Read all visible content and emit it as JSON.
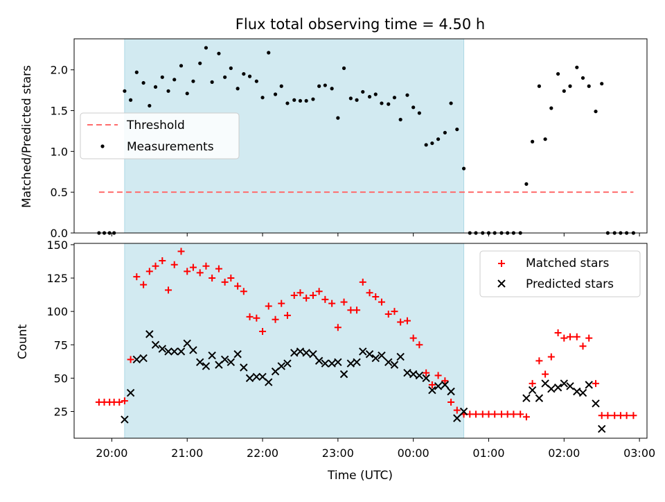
{
  "chart_data": [
    {
      "type": "scatter",
      "title": "Flux total observing time = 4.50 h",
      "xlabel": "",
      "ylabel": "Matched/Predicted stars",
      "x_unit": "hours (UTC, 24 = 00:00 next day)",
      "xlim": [
        19.5,
        27.1
      ],
      "ylim": [
        0,
        2.38
      ],
      "yticks": [
        "0.0",
        "0.5",
        "1.0",
        "1.5",
        "2.0"
      ],
      "legend": "center-left",
      "grid": false,
      "shaded_span": [
        20.17,
        24.67
      ],
      "shaded_color": "#add8e6",
      "series": [
        {
          "name": "Threshold",
          "style": "dashed-line",
          "color": "#ff6b6b",
          "x": [
            19.83,
            26.92
          ],
          "y": [
            0.5,
            0.5
          ]
        },
        {
          "name": "Measurements",
          "style": "dot",
          "color": "#000000",
          "x": [
            19.83,
            19.9,
            19.97,
            20.03,
            20.17,
            20.25,
            20.33,
            20.42,
            20.5,
            20.58,
            20.67,
            20.75,
            20.83,
            20.92,
            21.0,
            21.08,
            21.17,
            21.25,
            21.33,
            21.42,
            21.5,
            21.58,
            21.67,
            21.75,
            21.83,
            21.92,
            22.0,
            22.08,
            22.17,
            22.25,
            22.33,
            22.42,
            22.5,
            22.58,
            22.67,
            22.75,
            22.83,
            22.92,
            23.0,
            23.08,
            23.17,
            23.25,
            23.33,
            23.42,
            23.5,
            23.58,
            23.67,
            23.75,
            23.83,
            23.92,
            24.0,
            24.08,
            24.17,
            24.25,
            24.33,
            24.42,
            24.5,
            24.58,
            24.67,
            24.75,
            24.83,
            24.92,
            25.0,
            25.08,
            25.17,
            25.25,
            25.33,
            25.42,
            25.5,
            25.58,
            25.67,
            25.75,
            25.83,
            25.92,
            26.0,
            26.08,
            26.17,
            26.25,
            26.33,
            26.42,
            26.5,
            26.58,
            26.67,
            26.75,
            26.83,
            26.92
          ],
          "y": [
            0,
            0,
            0,
            0,
            1.74,
            1.63,
            1.97,
            1.84,
            1.56,
            1.79,
            1.91,
            1.74,
            1.88,
            2.05,
            1.71,
            1.86,
            2.08,
            2.27,
            1.85,
            2.2,
            1.91,
            2.02,
            1.77,
            1.95,
            1.92,
            1.86,
            1.66,
            2.21,
            1.7,
            1.8,
            1.59,
            1.63,
            1.62,
            1.62,
            1.64,
            1.8,
            1.81,
            1.77,
            1.41,
            2.02,
            1.65,
            1.63,
            1.73,
            1.67,
            1.7,
            1.59,
            1.58,
            1.66,
            1.39,
            1.69,
            1.54,
            1.47,
            1.08,
            1.1,
            1.15,
            1.23,
            1.59,
            1.27,
            0.79,
            0,
            0,
            0,
            0,
            0,
            0,
            0,
            0,
            0,
            0.6,
            1.12,
            1.8,
            1.15,
            1.53,
            1.95,
            1.74,
            1.8,
            2.03,
            1.9,
            1.8,
            1.49,
            1.83,
            0,
            0,
            0,
            0,
            0
          ]
        }
      ]
    },
    {
      "type": "scatter",
      "title": "",
      "xlabel": "Time (UTC)",
      "ylabel": "Count",
      "x_unit": "hours (UTC, 24 = 00:00 next day)",
      "xlim": [
        19.5,
        27.1
      ],
      "ylim": [
        5,
        151
      ],
      "yticks": [
        "25",
        "50",
        "75",
        "100",
        "125",
        "150"
      ],
      "xticks": [
        "20:00",
        "21:00",
        "22:00",
        "23:00",
        "00:00",
        "01:00",
        "02:00",
        "03:00"
      ],
      "legend": "top-right",
      "grid": false,
      "shaded_span": [
        20.17,
        24.67
      ],
      "shaded_color": "#add8e6",
      "series": [
        {
          "name": "Matched stars",
          "marker": "plus",
          "color": "#ff0000",
          "x": [
            19.83,
            19.9,
            19.97,
            20.03,
            20.1,
            20.17,
            20.25,
            20.33,
            20.42,
            20.5,
            20.58,
            20.67,
            20.75,
            20.83,
            20.92,
            21.0,
            21.08,
            21.17,
            21.25,
            21.33,
            21.42,
            21.5,
            21.58,
            21.67,
            21.75,
            21.83,
            21.92,
            22.0,
            22.08,
            22.17,
            22.25,
            22.33,
            22.42,
            22.5,
            22.58,
            22.67,
            22.75,
            22.83,
            22.92,
            23.0,
            23.08,
            23.17,
            23.25,
            23.33,
            23.42,
            23.5,
            23.58,
            23.67,
            23.75,
            23.83,
            23.92,
            24.0,
            24.08,
            24.17,
            24.25,
            24.33,
            24.42,
            24.5,
            24.58,
            24.67,
            24.75,
            24.83,
            24.92,
            25.0,
            25.08,
            25.17,
            25.25,
            25.33,
            25.42,
            25.5,
            25.58,
            25.67,
            25.75,
            25.83,
            25.92,
            26.0,
            26.08,
            26.17,
            26.25,
            26.33,
            26.42,
            26.5,
            26.58,
            26.67,
            26.75,
            26.83,
            26.92
          ],
          "y": [
            32,
            32,
            32,
            32,
            32,
            33,
            64,
            126,
            120,
            130,
            134,
            138,
            116,
            135,
            145,
            130,
            133,
            129,
            134,
            125,
            132,
            122,
            125,
            119,
            115,
            96,
            95,
            85,
            104,
            94,
            106,
            97,
            112,
            114,
            110,
            112,
            115,
            109,
            106,
            88,
            107,
            101,
            101,
            122,
            114,
            111,
            107,
            98,
            100,
            92,
            93,
            80,
            75,
            54,
            45,
            52,
            48,
            32,
            26,
            23,
            23,
            23,
            23,
            23,
            23,
            23,
            23,
            23,
            23,
            21,
            46,
            63,
            53,
            66,
            84,
            80,
            81,
            81,
            74,
            80,
            46,
            22,
            22,
            22,
            22,
            22,
            22
          ]
        },
        {
          "name": "Predicted stars",
          "marker": "x",
          "color": "#000000",
          "x": [
            20.17,
            20.25,
            20.33,
            20.42,
            20.5,
            20.58,
            20.67,
            20.75,
            20.83,
            20.92,
            21.0,
            21.08,
            21.17,
            21.25,
            21.33,
            21.42,
            21.5,
            21.58,
            21.67,
            21.75,
            21.83,
            21.92,
            22.0,
            22.08,
            22.17,
            22.25,
            22.33,
            22.42,
            22.5,
            22.58,
            22.67,
            22.75,
            22.83,
            22.92,
            23.0,
            23.08,
            23.17,
            23.25,
            23.33,
            23.42,
            23.5,
            23.58,
            23.67,
            23.75,
            23.83,
            23.92,
            24.0,
            24.08,
            24.17,
            24.25,
            24.33,
            24.42,
            24.5,
            24.58,
            24.67,
            25.5,
            25.58,
            25.67,
            25.75,
            25.83,
            25.92,
            26.0,
            26.08,
            26.17,
            26.25,
            26.33,
            26.42,
            26.5
          ],
          "y": [
            19,
            39,
            64,
            65,
            83,
            75,
            72,
            70,
            70,
            70,
            76,
            71,
            62,
            59,
            67,
            60,
            64,
            62,
            68,
            58,
            50,
            51,
            51,
            47,
            55,
            59,
            61,
            69,
            70,
            69,
            68,
            63,
            61,
            61,
            62,
            53,
            61,
            62,
            70,
            68,
            65,
            67,
            62,
            60,
            66,
            54,
            53,
            52,
            50,
            41,
            44,
            45,
            40,
            20,
            25,
            35,
            41,
            35,
            46,
            42,
            43,
            46,
            44,
            40,
            39,
            45,
            31,
            12
          ]
        }
      ]
    }
  ]
}
